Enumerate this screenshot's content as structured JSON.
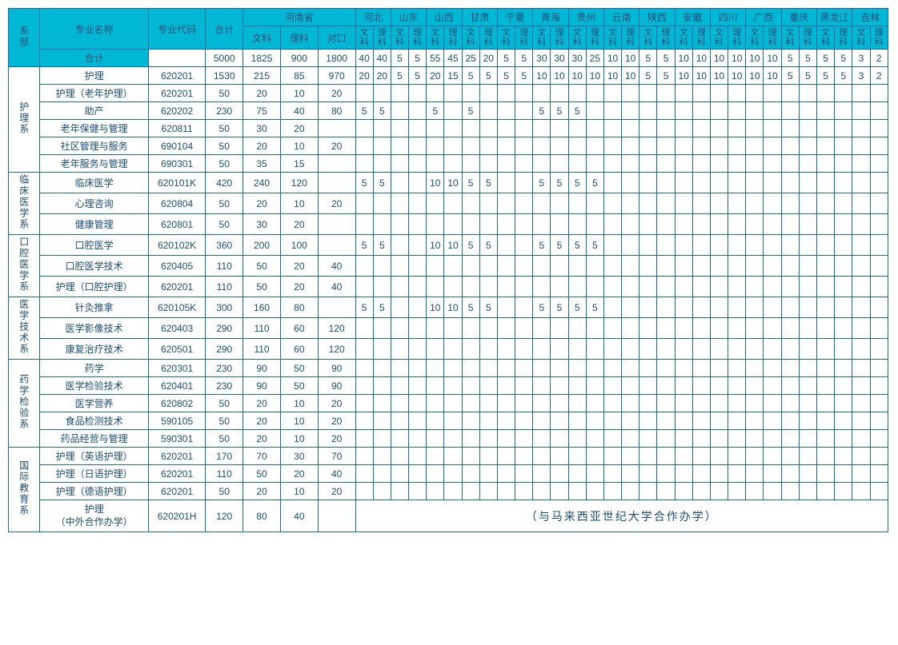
{
  "headers": {
    "dept": "系部",
    "major": "专业名称",
    "code": "专业代码",
    "total": "合计",
    "henan": "河南省",
    "hn_wen": "文科",
    "hn_li": "理科",
    "hn_dui": "对口",
    "provinces": [
      "河北",
      "山东",
      "山西",
      "甘肃",
      "宁夏",
      "青海",
      "贵州",
      "云南",
      "陕西",
      "安徽",
      "四川",
      "广西",
      "重庆",
      "黑龙江",
      "吉林"
    ],
    "sub_wen": "文科",
    "sub_li": "理科",
    "total_row": "合计"
  },
  "totals": {
    "total": "5000",
    "hn_wen": "1825",
    "hn_li": "900",
    "hn_dui": "1800",
    "provs": [
      "40",
      "40",
      "5",
      "5",
      "55",
      "45",
      "25",
      "20",
      "5",
      "5",
      "30",
      "30",
      "30",
      "25",
      "10",
      "10",
      "5",
      "5",
      "10",
      "10",
      "10",
      "10",
      "10",
      "10",
      "5",
      "5",
      "5",
      "5",
      "3",
      "2"
    ]
  },
  "depts": [
    {
      "name": "护理系",
      "rows": [
        {
          "major": "护理",
          "code": "620201",
          "total": "1530",
          "hn": [
            "215",
            "85",
            "970"
          ],
          "p": [
            "20",
            "20",
            "5",
            "5",
            "20",
            "15",
            "5",
            "5",
            "5",
            "5",
            "10",
            "10",
            "10",
            "10",
            "10",
            "10",
            "5",
            "5",
            "10",
            "10",
            "10",
            "10",
            "10",
            "10",
            "5",
            "5",
            "5",
            "5",
            "3",
            "2"
          ]
        },
        {
          "major": "护理（老年护理）",
          "code": "620201",
          "total": "50",
          "hn": [
            "20",
            "10",
            "20"
          ],
          "p": [
            "",
            "",
            "",
            "",
            "",
            "",
            "",
            "",
            "",
            "",
            "",
            "",
            "",
            "",
            "",
            "",
            "",
            "",
            "",
            "",
            "",
            "",
            "",
            "",
            "",
            "",
            "",
            "",
            "",
            ""
          ]
        },
        {
          "major": "助产",
          "code": "620202",
          "total": "230",
          "hn": [
            "75",
            "40",
            "80"
          ],
          "p": [
            "5",
            "5",
            "",
            "",
            "5",
            "",
            "5",
            "",
            "",
            "",
            "5",
            "5",
            "5",
            "",
            "",
            "",
            "",
            "",
            "",
            "",
            "",
            "",
            "",
            "",
            "",
            "",
            "",
            "",
            "",
            ""
          ]
        },
        {
          "major": "老年保健与管理",
          "code": "620811",
          "total": "50",
          "hn": [
            "30",
            "20",
            ""
          ],
          "p": [
            "",
            "",
            "",
            "",
            "",
            "",
            "",
            "",
            "",
            "",
            "",
            "",
            "",
            "",
            "",
            "",
            "",
            "",
            "",
            "",
            "",
            "",
            "",
            "",
            "",
            "",
            "",
            "",
            "",
            ""
          ]
        },
        {
          "major": "社区管理与服务",
          "code": "690104",
          "total": "50",
          "hn": [
            "20",
            "10",
            "20"
          ],
          "p": [
            "",
            "",
            "",
            "",
            "",
            "",
            "",
            "",
            "",
            "",
            "",
            "",
            "",
            "",
            "",
            "",
            "",
            "",
            "",
            "",
            "",
            "",
            "",
            "",
            "",
            "",
            "",
            "",
            "",
            ""
          ]
        },
        {
          "major": "老年服务与管理",
          "code": "690301",
          "total": "50",
          "hn": [
            "35",
            "15",
            ""
          ],
          "p": [
            "",
            "",
            "",
            "",
            "",
            "",
            "",
            "",
            "",
            "",
            "",
            "",
            "",
            "",
            "",
            "",
            "",
            "",
            "",
            "",
            "",
            "",
            "",
            "",
            "",
            "",
            "",
            "",
            "",
            ""
          ]
        }
      ]
    },
    {
      "name": "临床医学系",
      "rows": [
        {
          "major": "临床医学",
          "code": "620101K",
          "total": "420",
          "hn": [
            "240",
            "120",
            ""
          ],
          "p": [
            "5",
            "5",
            "",
            "",
            "10",
            "10",
            "5",
            "5",
            "",
            "",
            "5",
            "5",
            "5",
            "5",
            "",
            "",
            "",
            "",
            "",
            "",
            "",
            "",
            "",
            "",
            "",
            "",
            "",
            "",
            "",
            ""
          ]
        },
        {
          "major": "心理咨询",
          "code": "620804",
          "total": "50",
          "hn": [
            "20",
            "10",
            "20"
          ],
          "p": [
            "",
            "",
            "",
            "",
            "",
            "",
            "",
            "",
            "",
            "",
            "",
            "",
            "",
            "",
            "",
            "",
            "",
            "",
            "",
            "",
            "",
            "",
            "",
            "",
            "",
            "",
            "",
            "",
            "",
            ""
          ]
        },
        {
          "major": "健康管理",
          "code": "620801",
          "total": "50",
          "hn": [
            "30",
            "20",
            ""
          ],
          "p": [
            "",
            "",
            "",
            "",
            "",
            "",
            "",
            "",
            "",
            "",
            "",
            "",
            "",
            "",
            "",
            "",
            "",
            "",
            "",
            "",
            "",
            "",
            "",
            "",
            "",
            "",
            "",
            "",
            "",
            ""
          ]
        }
      ]
    },
    {
      "name": "口腔医学系",
      "rows": [
        {
          "major": "口腔医学",
          "code": "620102K",
          "total": "360",
          "hn": [
            "200",
            "100",
            ""
          ],
          "p": [
            "5",
            "5",
            "",
            "",
            "10",
            "10",
            "5",
            "5",
            "",
            "",
            "5",
            "5",
            "5",
            "5",
            "",
            "",
            "",
            "",
            "",
            "",
            "",
            "",
            "",
            "",
            "",
            "",
            "",
            "",
            "",
            ""
          ]
        },
        {
          "major": "口腔医学技术",
          "code": "620405",
          "total": "110",
          "hn": [
            "50",
            "20",
            "40"
          ],
          "p": [
            "",
            "",
            "",
            "",
            "",
            "",
            "",
            "",
            "",
            "",
            "",
            "",
            "",
            "",
            "",
            "",
            "",
            "",
            "",
            "",
            "",
            "",
            "",
            "",
            "",
            "",
            "",
            "",
            "",
            ""
          ]
        },
        {
          "major": "护理（口腔护理）",
          "code": "620201",
          "total": "110",
          "hn": [
            "50",
            "20",
            "40"
          ],
          "p": [
            "",
            "",
            "",
            "",
            "",
            "",
            "",
            "",
            "",
            "",
            "",
            "",
            "",
            "",
            "",
            "",
            "",
            "",
            "",
            "",
            "",
            "",
            "",
            "",
            "",
            "",
            "",
            "",
            "",
            ""
          ]
        }
      ]
    },
    {
      "name": "医学技术系",
      "rows": [
        {
          "major": "针灸推拿",
          "code": "620105K",
          "total": "300",
          "hn": [
            "160",
            "80",
            ""
          ],
          "p": [
            "5",
            "5",
            "",
            "",
            "10",
            "10",
            "5",
            "5",
            "",
            "",
            "5",
            "5",
            "5",
            "5",
            "",
            "",
            "",
            "",
            "",
            "",
            "",
            "",
            "",
            "",
            "",
            "",
            "",
            "",
            "",
            ""
          ]
        },
        {
          "major": "医学影像技术",
          "code": "620403",
          "total": "290",
          "hn": [
            "110",
            "60",
            "120"
          ],
          "p": [
            "",
            "",
            "",
            "",
            "",
            "",
            "",
            "",
            "",
            "",
            "",
            "",
            "",
            "",
            "",
            "",
            "",
            "",
            "",
            "",
            "",
            "",
            "",
            "",
            "",
            "",
            "",
            "",
            "",
            ""
          ]
        },
        {
          "major": "康复治疗技术",
          "code": "620501",
          "total": "290",
          "hn": [
            "110",
            "60",
            "120"
          ],
          "p": [
            "",
            "",
            "",
            "",
            "",
            "",
            "",
            "",
            "",
            "",
            "",
            "",
            "",
            "",
            "",
            "",
            "",
            "",
            "",
            "",
            "",
            "",
            "",
            "",
            "",
            "",
            "",
            "",
            "",
            ""
          ]
        }
      ]
    },
    {
      "name": "药学检验系",
      "rows": [
        {
          "major": "药学",
          "code": "620301",
          "total": "230",
          "hn": [
            "90",
            "50",
            "90"
          ],
          "p": [
            "",
            "",
            "",
            "",
            "",
            "",
            "",
            "",
            "",
            "",
            "",
            "",
            "",
            "",
            "",
            "",
            "",
            "",
            "",
            "",
            "",
            "",
            "",
            "",
            "",
            "",
            "",
            "",
            "",
            ""
          ]
        },
        {
          "major": "医学检验技术",
          "code": "620401",
          "total": "230",
          "hn": [
            "90",
            "50",
            "90"
          ],
          "p": [
            "",
            "",
            "",
            "",
            "",
            "",
            "",
            "",
            "",
            "",
            "",
            "",
            "",
            "",
            "",
            "",
            "",
            "",
            "",
            "",
            "",
            "",
            "",
            "",
            "",
            "",
            "",
            "",
            "",
            ""
          ]
        },
        {
          "major": "医学营养",
          "code": "620802",
          "total": "50",
          "hn": [
            "20",
            "10",
            "20"
          ],
          "p": [
            "",
            "",
            "",
            "",
            "",
            "",
            "",
            "",
            "",
            "",
            "",
            "",
            "",
            "",
            "",
            "",
            "",
            "",
            "",
            "",
            "",
            "",
            "",
            "",
            "",
            "",
            "",
            "",
            "",
            ""
          ]
        },
        {
          "major": "食品检测技术",
          "code": "590105",
          "total": "50",
          "hn": [
            "20",
            "10",
            "20"
          ],
          "p": [
            "",
            "",
            "",
            "",
            "",
            "",
            "",
            "",
            "",
            "",
            "",
            "",
            "",
            "",
            "",
            "",
            "",
            "",
            "",
            "",
            "",
            "",
            "",
            "",
            "",
            "",
            "",
            "",
            "",
            ""
          ]
        },
        {
          "major": "药品经营与管理",
          "code": "590301",
          "total": "50",
          "hn": [
            "20",
            "10",
            "20"
          ],
          "p": [
            "",
            "",
            "",
            "",
            "",
            "",
            "",
            "",
            "",
            "",
            "",
            "",
            "",
            "",
            "",
            "",
            "",
            "",
            "",
            "",
            "",
            "",
            "",
            "",
            "",
            "",
            "",
            "",
            "",
            ""
          ]
        }
      ]
    },
    {
      "name": "国际教育系",
      "rows": [
        {
          "major": "护理（英语护理）",
          "code": "620201",
          "total": "170",
          "hn": [
            "70",
            "30",
            "70"
          ],
          "p": [
            "",
            "",
            "",
            "",
            "",
            "",
            "",
            "",
            "",
            "",
            "",
            "",
            "",
            "",
            "",
            "",
            "",
            "",
            "",
            "",
            "",
            "",
            "",
            "",
            "",
            "",
            "",
            "",
            "",
            ""
          ]
        },
        {
          "major": "护理（日语护理）",
          "code": "620201",
          "total": "110",
          "hn": [
            "50",
            "20",
            "40"
          ],
          "p": [
            "",
            "",
            "",
            "",
            "",
            "",
            "",
            "",
            "",
            "",
            "",
            "",
            "",
            "",
            "",
            "",
            "",
            "",
            "",
            "",
            "",
            "",
            "",
            "",
            "",
            "",
            "",
            "",
            "",
            ""
          ]
        },
        {
          "major": "护理（德语护理）",
          "code": "620201",
          "total": "50",
          "hn": [
            "20",
            "10",
            "20"
          ],
          "p": [
            "",
            "",
            "",
            "",
            "",
            "",
            "",
            "",
            "",
            "",
            "",
            "",
            "",
            "",
            "",
            "",
            "",
            "",
            "",
            "",
            "",
            "",
            "",
            "",
            "",
            "",
            "",
            "",
            "",
            ""
          ]
        },
        {
          "major": "护理\n（中外合作办学）",
          "code": "620201H",
          "total": "120",
          "hn": [
            "80",
            "40",
            ""
          ],
          "note": "（与马来西亚世纪大学合作办学）"
        }
      ]
    }
  ],
  "style": {
    "header_bg": "#00b8d4",
    "border_color": "#1a6ba3",
    "text_color": "#1a4d7a"
  }
}
